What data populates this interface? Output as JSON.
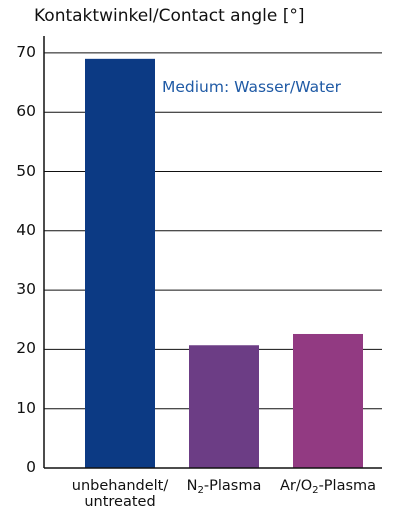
{
  "chart_data": {
    "type": "bar",
    "ylabel": "Kontaktwinkel/Contact angle [°]",
    "annotation": "Medium: Wasser/Water",
    "ylim": [
      0,
      70
    ],
    "yticks": [
      0,
      10,
      20,
      30,
      40,
      50,
      60,
      70
    ],
    "grid": true,
    "categories": [
      {
        "line1_pre": "unbehandelt/",
        "sub": "",
        "line1_post": "",
        "line2": "untreated"
      },
      {
        "line1_pre": "N",
        "sub": "2",
        "line1_post": "-Plasma",
        "line2": ""
      },
      {
        "line1_pre": "Ar/O",
        "sub": "2",
        "line1_post": "-Plasma",
        "line2": ""
      }
    ],
    "values": [
      69,
      20.7,
      22.6
    ],
    "colors": [
      "#0c3a84",
      "#6c3d85",
      "#923a82"
    ],
    "annotation_color": "#1f5aa5"
  }
}
